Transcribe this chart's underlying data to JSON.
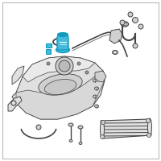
{
  "background_color": "#f2f2f2",
  "border_color": "#bbbbbb",
  "highlight_color": "#1199bb",
  "highlight_fill": "#44bbdd",
  "line_color": "#444444",
  "part_fill": "#e0e0e0",
  "part_fill2": "#d0d0d0",
  "part_fill3": "#c8c8c8",
  "white": "#ffffff",
  "figsize": [
    2.0,
    2.0
  ],
  "dpi": 100
}
